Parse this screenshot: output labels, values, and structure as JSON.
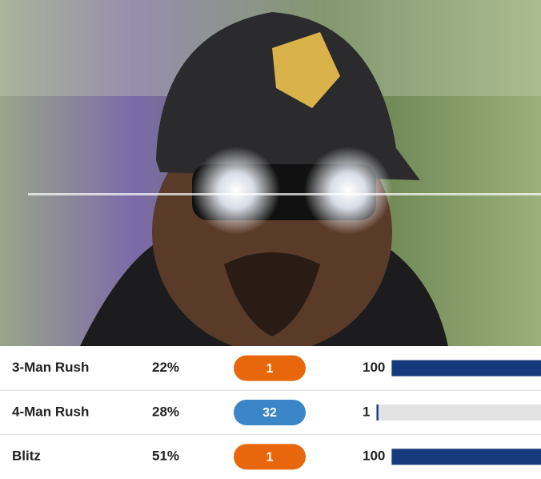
{
  "table": {
    "rows": [
      {
        "label": "3-Man Rush",
        "rate": "22%",
        "rank": "1",
        "rank_color": "#e8670c",
        "percentile": 100
      },
      {
        "label": "4-Man Rush",
        "rate": "28%",
        "rank": "32",
        "rank_color": "#3a86c6",
        "percentile": 1
      },
      {
        "label": "Blitz",
        "rate": "51%",
        "rank": "1",
        "rank_color": "#e8670c",
        "percentile": 100
      }
    ],
    "bar_color": "#163a7c",
    "track_color": "#e3e3e3"
  }
}
